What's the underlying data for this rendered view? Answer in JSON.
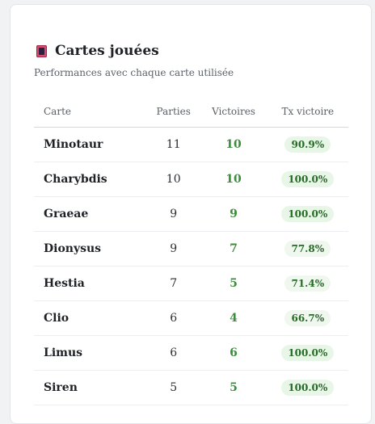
{
  "panel": {
    "title": "Cartes jouées",
    "title_icon": "card-icon",
    "subtitle": "Performances avec chaque carte utilisée"
  },
  "table": {
    "headers": {
      "card": "Carte",
      "games": "Parties",
      "wins": "Victoires",
      "win_rate": "Tx victoire"
    },
    "rows": [
      {
        "card": "Minotaur",
        "games": "11",
        "wins": "10",
        "win_rate": "90.9%"
      },
      {
        "card": "Charybdis",
        "games": "10",
        "wins": "10",
        "win_rate": "100.0%"
      },
      {
        "card": "Graeae",
        "games": "9",
        "wins": "9",
        "win_rate": "100.0%"
      },
      {
        "card": "Dionysus",
        "games": "9",
        "wins": "7",
        "win_rate": "77.8%"
      },
      {
        "card": "Hestia",
        "games": "7",
        "wins": "5",
        "win_rate": "71.4%"
      },
      {
        "card": "Clio",
        "games": "6",
        "wins": "4",
        "win_rate": "66.7%"
      },
      {
        "card": "Limus",
        "games": "6",
        "wins": "6",
        "win_rate": "100.0%"
      },
      {
        "card": "Siren",
        "games": "5",
        "wins": "5",
        "win_rate": "100.0%"
      }
    ]
  },
  "colors": {
    "wins_text": "#3b8c3b",
    "badge_background": "#e8f6e8",
    "badge_text": "#256b25"
  }
}
